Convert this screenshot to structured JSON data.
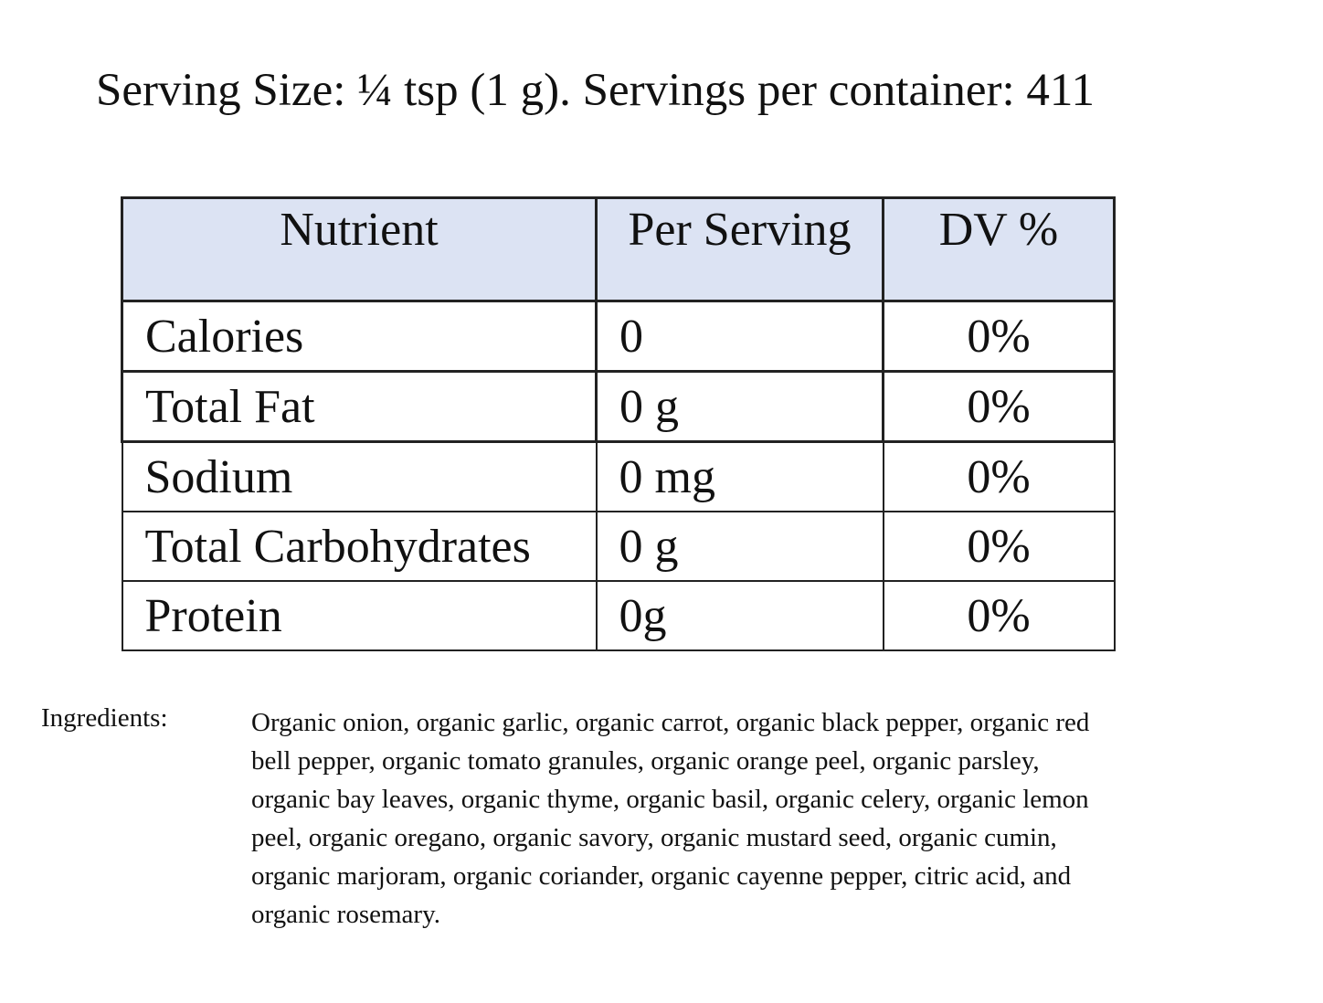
{
  "title": "Serving Size: ¼ tsp (1 g). Servings per container: 411",
  "table": {
    "header": [
      "Nutrient",
      "Per Serving",
      "DV %"
    ],
    "rows": [
      [
        "Calories",
        "0",
        "0%"
      ],
      [
        "Total Fat",
        "0 g",
        "0%"
      ],
      [
        "Sodium",
        "0 mg",
        "0%"
      ],
      [
        "Total Carbohydrates",
        "0 g",
        "0%"
      ],
      [
        "Protein",
        "0g",
        "0%"
      ]
    ]
  },
  "ingredients": {
    "label": "Ingredients:",
    "lines": [
      "Organic onion, organic garlic, organic carrot, organic black pepper, organic red",
      "bell pepper, organic tomato granules, organic orange peel, organic parsley,",
      "organic bay leaves, organic thyme, organic basil, organic celery, organic lemon",
      "peel, organic oregano, organic savory, organic mustard seed, organic cumin,",
      "organic marjoram, organic coriander, organic cayenne pepper, citric acid, and",
      "organic rosemary."
    ]
  }
}
